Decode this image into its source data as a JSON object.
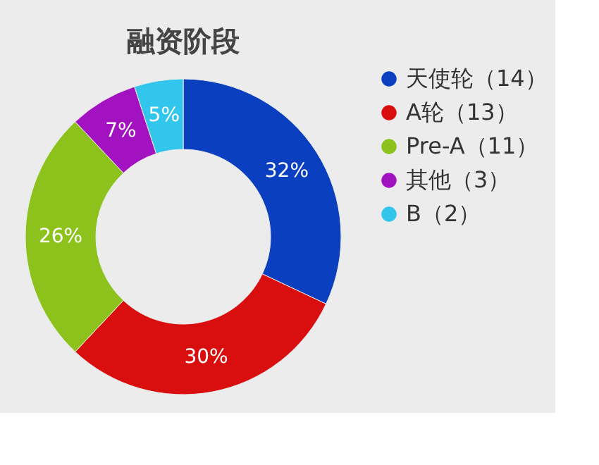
{
  "chart_data": {
    "type": "donut",
    "title": "融资阶段",
    "categories": [
      "天使轮（14）",
      "A轮（13）",
      "Pre-A（11）",
      "其他（3）",
      "B（2）"
    ],
    "values": [
      32,
      30,
      26,
      7,
      5
    ],
    "value_labels": [
      "32%",
      "30%",
      "26%",
      "7%",
      "5%"
    ],
    "colors": [
      "#0a3fbf",
      "#d90f0f",
      "#8cc21b",
      "#a312c0",
      "#33c6ec"
    ],
    "legend": "right"
  }
}
